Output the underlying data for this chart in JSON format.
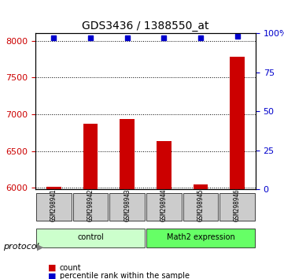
{
  "title": "GDS3436 / 1388550_at",
  "samples": [
    "GSM298941",
    "GSM298942",
    "GSM298943",
    "GSM298944",
    "GSM298945",
    "GSM298946"
  ],
  "counts": [
    6010,
    6870,
    6930,
    6640,
    6040,
    7780
  ],
  "percentile_ranks": [
    97,
    97,
    97,
    97,
    97,
    98
  ],
  "ylim_left": [
    5980,
    8100
  ],
  "ylim_right": [
    0,
    100
  ],
  "yticks_left": [
    6000,
    6500,
    7000,
    7500,
    8000
  ],
  "yticks_right": [
    0,
    25,
    50,
    75,
    100
  ],
  "ytick_labels_left": [
    "6000",
    "6500",
    "7000",
    "7500",
    "8000"
  ],
  "ytick_labels_right": [
    "0",
    "25",
    "50",
    "75",
    "100%"
  ],
  "groups": [
    {
      "label": "control",
      "indices": [
        0,
        1,
        2
      ],
      "color": "#ccffcc"
    },
    {
      "label": "Math2 expression",
      "indices": [
        3,
        4,
        5
      ],
      "color": "#66ff66"
    }
  ],
  "bar_color": "#cc0000",
  "dot_color": "#0000cc",
  "bar_width": 0.4,
  "background_color": "#ffffff",
  "plot_bg_color": "#ffffff",
  "sample_box_color": "#cccccc",
  "grid_color": "#000000",
  "grid_linestyle": "dotted",
  "legend_dot_label": "percentile rank within the sample",
  "legend_bar_label": "count",
  "protocol_label": "protocol",
  "left_tick_color": "#cc0000",
  "right_tick_color": "#0000cc"
}
